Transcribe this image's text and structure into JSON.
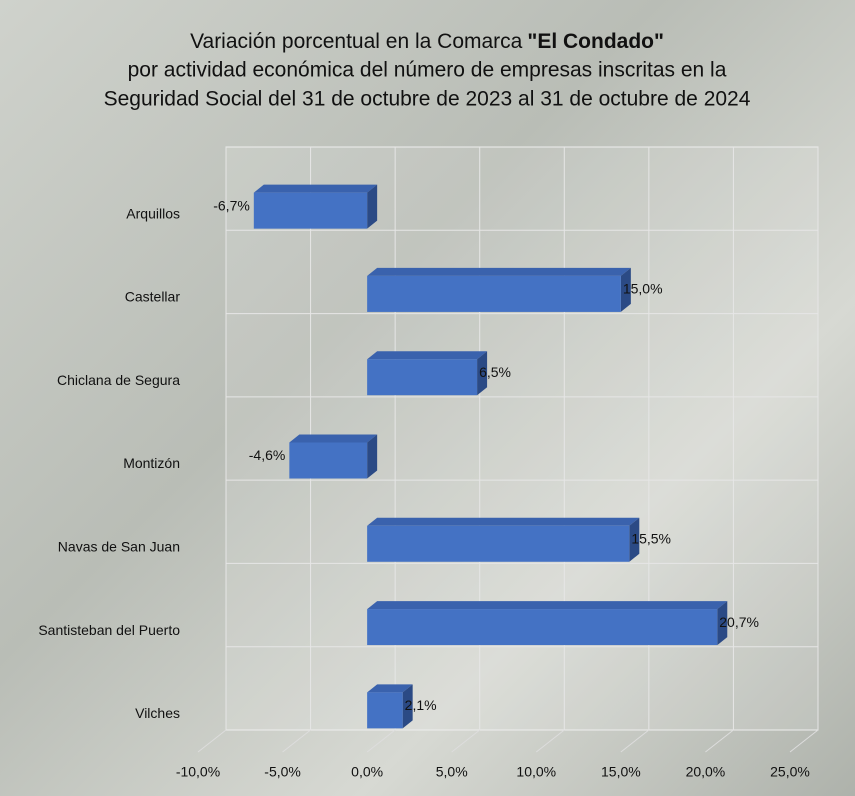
{
  "chart_data": {
    "type": "bar",
    "orientation": "horizontal",
    "title": [
      "Variación porcentual en la Comarca",
      "\"El Condado\"",
      "por actividad económica del número de empresas inscritas en la",
      "Seguridad Social del 31 de octubre de 2023 al 31 de octubre de 2024"
    ],
    "categories": [
      "Arquillos",
      "Castellar",
      "Chiclana de Segura",
      "Montizón",
      "Navas de San Juan",
      "Santisteban del Puerto",
      "Vilches"
    ],
    "values": [
      -6.7,
      15.0,
      6.5,
      -4.6,
      15.5,
      20.7,
      2.1
    ],
    "value_labels": [
      "-6,7%",
      "15,0%",
      "6,5%",
      "-4,6%",
      "15,5%",
      "20,7%",
      "2,1%"
    ],
    "color": "#4472c4",
    "xlim": [
      -10,
      25
    ],
    "xticks": [
      {
        "value": -10,
        "label": "-10,0%"
      },
      {
        "value": -5,
        "label": "-5,0%"
      },
      {
        "value": 0,
        "label": "0,0%"
      },
      {
        "value": 5,
        "label": "5,0%"
      },
      {
        "value": 10,
        "label": "10,0%"
      },
      {
        "value": 15,
        "label": "15,0%"
      },
      {
        "value": 20,
        "label": "20,0%"
      },
      {
        "value": 25,
        "label": "25,0%"
      }
    ],
    "grid": true
  }
}
